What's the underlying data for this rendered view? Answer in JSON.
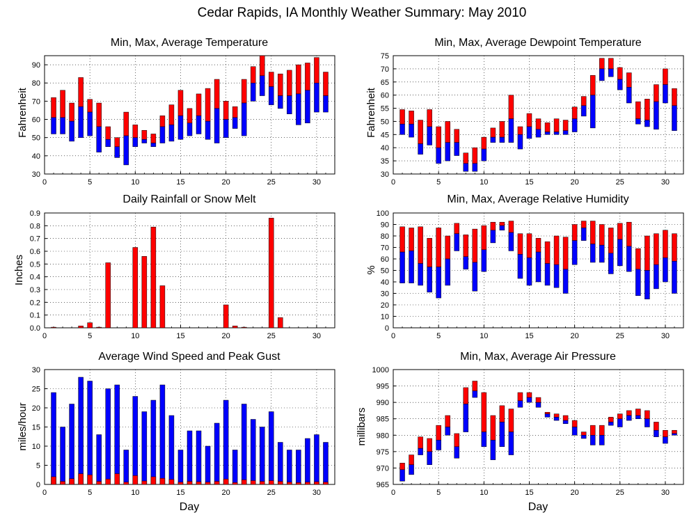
{
  "page_title": "Cedar Rapids, IA Monthly Weather Summary: May 2010",
  "colors": {
    "max_segment": "#ff0000",
    "min_segment": "#0000ff",
    "bar_outline": "#000000",
    "grid": "#000000"
  },
  "chart_data": [
    {
      "type": "bar",
      "style": "floating-range",
      "title": "Min, Max, Average Temperature",
      "xlabel": "",
      "ylabel": "Fahrenheit",
      "xlim": [
        0,
        32
      ],
      "ylim": [
        30,
        95
      ],
      "xticks": [
        0,
        5,
        10,
        15,
        20,
        25,
        30
      ],
      "yticks": [
        30,
        40,
        50,
        60,
        70,
        80,
        90
      ],
      "grid": true,
      "x": [
        1,
        2,
        3,
        4,
        5,
        6,
        7,
        8,
        9,
        10,
        11,
        12,
        13,
        14,
        15,
        16,
        17,
        18,
        19,
        20,
        21,
        22,
        23,
        24,
        25,
        26,
        27,
        28,
        29,
        30,
        31
      ],
      "series": [
        {
          "name": "Min",
          "values": [
            52,
            52,
            48,
            50,
            51,
            42,
            45,
            39,
            35,
            45,
            47,
            45,
            47,
            48,
            49,
            51,
            52,
            49,
            47,
            50,
            55,
            51,
            70,
            73,
            68,
            66,
            63,
            57,
            58,
            64,
            64
          ]
        },
        {
          "name": "Average",
          "values": [
            61,
            61,
            59,
            67,
            64,
            56,
            49,
            45,
            51,
            50,
            49,
            47,
            56,
            57,
            62,
            58,
            62,
            59,
            66,
            60,
            61,
            69,
            80,
            84,
            78,
            73,
            73,
            74,
            76,
            80,
            73
          ]
        },
        {
          "name": "Max",
          "values": [
            72,
            76,
            69,
            83,
            71,
            69,
            56,
            50,
            64,
            57,
            54,
            52,
            62,
            68,
            76,
            66,
            74,
            77,
            82,
            70,
            67,
            82,
            89,
            95,
            86,
            85,
            87,
            90,
            91,
            94,
            86
          ]
        }
      ]
    },
    {
      "type": "bar",
      "style": "floating-range",
      "title": "Min, Max, Average Dewpoint Temperature",
      "xlabel": "",
      "ylabel": "Fahrenheit",
      "xlim": [
        0,
        32
      ],
      "ylim": [
        30,
        75
      ],
      "xticks": [
        0,
        5,
        10,
        15,
        20,
        25,
        30
      ],
      "yticks": [
        30,
        35,
        40,
        45,
        50,
        55,
        60,
        65,
        70,
        75
      ],
      "grid": true,
      "x": [
        1,
        2,
        3,
        4,
        5,
        6,
        7,
        8,
        9,
        10,
        11,
        12,
        13,
        14,
        15,
        16,
        17,
        18,
        19,
        20,
        21,
        22,
        23,
        24,
        25,
        26,
        27,
        28,
        29,
        30,
        31
      ],
      "series": [
        {
          "name": "Min",
          "values": [
            45,
            44,
            37.5,
            41,
            34,
            35,
            37,
            31,
            31,
            35,
            42,
            42,
            42,
            39.5,
            43.5,
            44,
            45,
            45,
            45,
            46,
            52,
            47.5,
            65.5,
            67,
            62,
            57,
            49,
            48,
            47,
            57,
            46.5
          ]
        },
        {
          "name": "Average",
          "values": [
            49,
            49,
            41.5,
            48,
            40,
            42,
            42,
            34,
            34,
            39.5,
            44,
            44,
            51,
            45,
            48,
            47,
            46,
            46,
            46.5,
            51,
            56,
            60,
            70,
            70,
            66,
            63,
            51,
            50.5,
            57.5,
            64,
            56
          ]
        },
        {
          "name": "Max",
          "values": [
            54.5,
            54,
            50.5,
            54.5,
            48,
            50,
            47,
            38,
            40,
            44,
            47.5,
            50,
            60,
            48,
            53,
            51,
            49.5,
            51,
            50.5,
            55.5,
            59.5,
            67.5,
            74,
            74,
            70.5,
            68.5,
            57.5,
            58.5,
            64,
            70,
            62.5
          ]
        }
      ]
    },
    {
      "type": "bar",
      "title": "Daily Rainfall or Snow Melt",
      "xlabel": "",
      "ylabel": "Inches",
      "xlim": [
        0,
        32
      ],
      "ylim": [
        0,
        0.9
      ],
      "xticks": [
        0,
        5,
        10,
        15,
        20,
        25,
        30
      ],
      "yticks": [
        0.0,
        0.1,
        0.2,
        0.3,
        0.4,
        0.5,
        0.6,
        0.7,
        0.8,
        0.9
      ],
      "ytick_labels": [
        "0.0",
        "0.1",
        "0.2",
        "0.3",
        "0.4",
        "0.5",
        "0.6",
        "0.7",
        "0.8",
        "0.9"
      ],
      "grid": true,
      "x": [
        1,
        4,
        5,
        6,
        7,
        10,
        11,
        12,
        13,
        20,
        21,
        22,
        25,
        26
      ],
      "series": [
        {
          "name": "Rainfall",
          "values": [
            0.005,
            0.015,
            0.04,
            0.005,
            0.51,
            0.63,
            0.56,
            0.79,
            0.33,
            0.18,
            0.015,
            0.005,
            0.86,
            0.08
          ]
        }
      ]
    },
    {
      "type": "bar",
      "style": "floating-range",
      "title": "Min, Max, Average Relative Humidity",
      "xlabel": "",
      "ylabel": "%",
      "xlim": [
        0,
        32
      ],
      "ylim": [
        0,
        100
      ],
      "xticks": [
        0,
        5,
        10,
        15,
        20,
        25,
        30
      ],
      "yticks": [
        0,
        10,
        20,
        30,
        40,
        50,
        60,
        70,
        80,
        90,
        100
      ],
      "grid": true,
      "x": [
        1,
        2,
        3,
        4,
        5,
        6,
        7,
        8,
        9,
        10,
        11,
        12,
        13,
        14,
        15,
        16,
        17,
        18,
        19,
        20,
        21,
        22,
        23,
        24,
        25,
        26,
        27,
        28,
        29,
        30,
        31
      ],
      "series": [
        {
          "name": "Min",
          "values": [
            39,
            39,
            37,
            31,
            26,
            37,
            67,
            51,
            32,
            49,
            74,
            85,
            67,
            43,
            37,
            40,
            37,
            35,
            30,
            55,
            76,
            57,
            57,
            47,
            54,
            49,
            28,
            25,
            34,
            40,
            30
          ]
        },
        {
          "name": "Average",
          "values": [
            66,
            67,
            56,
            53,
            53,
            60,
            82,
            62,
            57,
            68,
            85,
            89,
            83,
            64,
            61,
            66,
            56,
            55,
            51,
            76,
            87,
            73,
            72,
            65,
            77,
            71,
            51,
            50,
            55,
            61,
            58
          ]
        },
        {
          "name": "Max",
          "values": [
            88,
            87,
            88,
            78,
            87,
            80,
            91,
            81,
            86,
            89,
            92,
            92,
            93,
            82,
            82,
            78,
            75,
            80,
            79,
            90,
            93,
            93,
            90,
            87,
            91,
            92,
            69,
            80,
            82,
            85,
            82
          ]
        }
      ]
    },
    {
      "type": "bar",
      "style": "overlapping",
      "title": "Average Wind Speed and Peak Gust",
      "xlabel": "Day",
      "ylabel": "miles/hour",
      "xlim": [
        0,
        32
      ],
      "ylim": [
        0,
        30
      ],
      "xticks": [
        0,
        5,
        10,
        15,
        20,
        25,
        30
      ],
      "yticks": [
        0,
        5,
        10,
        15,
        20,
        25,
        30
      ],
      "grid": true,
      "x": [
        1,
        2,
        3,
        4,
        5,
        6,
        7,
        8,
        9,
        10,
        11,
        12,
        13,
        14,
        15,
        16,
        17,
        18,
        19,
        20,
        21,
        22,
        23,
        24,
        25,
        26,
        27,
        28,
        29,
        30,
        31
      ],
      "series": [
        {
          "name": "Peak Gust",
          "values": [
            24,
            15,
            21,
            28,
            27,
            13,
            25,
            26,
            9,
            23,
            19,
            22,
            26,
            18,
            9,
            14,
            14,
            10,
            16,
            22,
            9,
            21,
            17,
            15,
            19,
            11,
            9,
            9,
            12,
            13,
            11
          ]
        },
        {
          "name": "Average",
          "values": [
            2,
            0.8,
            1.5,
            2.8,
            2.5,
            0.8,
            1.4,
            2.8,
            0.6,
            2.3,
            0.9,
            2,
            1.6,
            1.3,
            0.6,
            0.8,
            0.7,
            0.6,
            0.8,
            1.4,
            0.5,
            1.2,
            1,
            0.8,
            1,
            0.8,
            0.6,
            0.5,
            0.6,
            0.7,
            0.6
          ]
        }
      ]
    },
    {
      "type": "bar",
      "style": "floating-range",
      "title": "Min, Max, Average Air Pressure",
      "xlabel": "Day",
      "ylabel": "millibars",
      "xlim": [
        0,
        32
      ],
      "ylim": [
        965,
        1000
      ],
      "xticks": [
        0,
        5,
        10,
        15,
        20,
        25,
        30
      ],
      "yticks": [
        965,
        970,
        975,
        980,
        985,
        990,
        995,
        1000
      ],
      "grid": true,
      "x": [
        1,
        2,
        3,
        4,
        5,
        6,
        7,
        8,
        9,
        10,
        11,
        12,
        13,
        14,
        15,
        16,
        17,
        18,
        19,
        20,
        21,
        22,
        23,
        24,
        25,
        26,
        27,
        28,
        29,
        30,
        31
      ],
      "series": [
        {
          "name": "Min",
          "values": [
            966,
            968,
            974,
            971,
            975.5,
            980,
            973,
            981,
            991.5,
            976.5,
            972.5,
            976.5,
            974,
            988.5,
            990,
            988.5,
            985.5,
            984.5,
            983.5,
            980,
            979,
            977,
            977,
            983,
            982.5,
            984.5,
            985,
            982.5,
            979.5,
            977.5,
            980
          ]
        },
        {
          "name": "Average",
          "values": [
            969.5,
            971,
            976,
            975,
            978.5,
            982.5,
            976.5,
            989.5,
            993.5,
            981,
            978.5,
            984,
            981,
            990.5,
            991.5,
            990,
            986.5,
            985.5,
            984.5,
            982.5,
            980,
            980,
            980,
            984,
            985,
            986,
            986,
            985,
            981.5,
            979.5,
            980.5
          ]
        },
        {
          "name": "Max",
          "values": [
            971.5,
            974,
            979.5,
            979,
            983,
            986,
            980.5,
            994.5,
            996.5,
            993,
            986,
            989,
            988,
            993,
            993,
            991.5,
            987,
            986.5,
            986,
            984.5,
            981,
            983,
            983,
            985.5,
            986.5,
            987.5,
            988,
            987.5,
            984,
            981.5,
            981.5
          ]
        }
      ]
    }
  ]
}
